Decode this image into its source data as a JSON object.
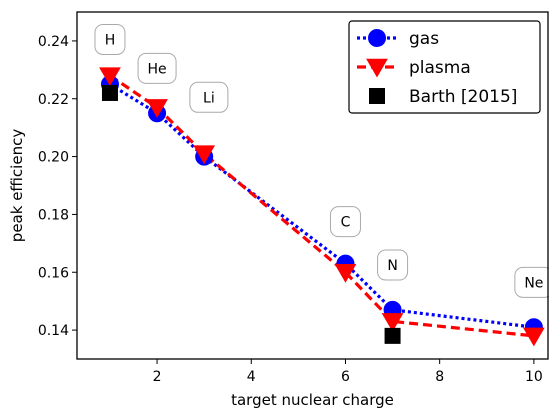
{
  "chart_data": {
    "type": "line",
    "title": "",
    "xlabel": "target nuclear charge",
    "ylabel": "peak efficiency",
    "xlim": [
      0.3,
      10.3
    ],
    "ylim": [
      0.13,
      0.25
    ],
    "xticks": [
      2,
      4,
      6,
      8,
      10
    ],
    "yticks": [
      0.14,
      0.16,
      0.18,
      0.2,
      0.22,
      0.24
    ],
    "xtick_labels": [
      "2",
      "4",
      "6",
      "8",
      "10"
    ],
    "ytick_labels": [
      "0.14",
      "0.16",
      "0.18",
      "0.20",
      "0.22",
      "0.24"
    ],
    "grid": false,
    "legend_position": "top-right",
    "series": [
      {
        "name": "gas",
        "style": "dotted-line-circle",
        "color": "#0000ff",
        "x": [
          1,
          2,
          3,
          6,
          7,
          10
        ],
        "y": [
          0.225,
          0.215,
          0.2,
          0.163,
          0.147,
          0.141
        ]
      },
      {
        "name": "plasma",
        "style": "dashed-line-triangle-down",
        "color": "#ff0000",
        "x": [
          1,
          2,
          3,
          6,
          7,
          10
        ],
        "y": [
          0.228,
          0.217,
          0.201,
          0.16,
          0.143,
          0.138
        ]
      },
      {
        "name": "Barth [2015]",
        "style": "square-marker",
        "color": "#000000",
        "x": [
          1,
          7
        ],
        "y": [
          0.222,
          0.138
        ]
      }
    ],
    "annotations": [
      {
        "text": "H",
        "x": 1,
        "y": 0.2405
      },
      {
        "text": "He",
        "x": 2,
        "y": 0.2305
      },
      {
        "text": "Li",
        "x": 3.1,
        "y": 0.2205
      },
      {
        "text": "C",
        "x": 6,
        "y": 0.1775
      },
      {
        "text": "N",
        "x": 7,
        "y": 0.1625
      },
      {
        "text": "Ne",
        "x": 10,
        "y": 0.1565
      }
    ]
  }
}
